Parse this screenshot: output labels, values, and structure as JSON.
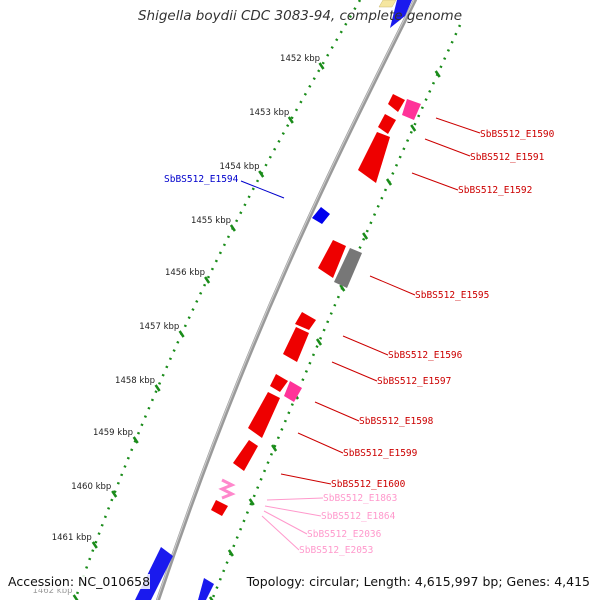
{
  "title": "Shigella boydii CDC 3083-94, complete genome",
  "footer": {
    "accession": "Accession: NC_010658",
    "topology": "Topology: circular; Length: 4,615,997 bp; Genes: 4,415"
  },
  "colors": {
    "backbone": "#888888",
    "ticks": "#1a8c1a",
    "gene_red": "#ff0000",
    "gene_blue": "#0000ff",
    "gene_pink": "#ff3399",
    "gene_gray": "#777777",
    "gene_yellow": "#f5e6a0",
    "label_red": "#cc0000",
    "label_blue": "#0000cc",
    "label_pink": "#ff99cc"
  },
  "scale_labels": [
    "1452 kbp",
    "1453 kbp",
    "1454 kbp",
    "1455 kbp",
    "1456 kbp",
    "1457 kbp",
    "1458 kbp",
    "1459 kbp",
    "1460 kbp",
    "1461 kbp",
    "1462 kbp"
  ],
  "gene_labels": [
    {
      "text": "SbBS512_E1590",
      "color": "red"
    },
    {
      "text": "SbBS512_E1591",
      "color": "red"
    },
    {
      "text": "SbBS512_E1592",
      "color": "red"
    },
    {
      "text": "SbBS512_E1594",
      "color": "blue"
    },
    {
      "text": "SbBS512_E1595",
      "color": "red"
    },
    {
      "text": "SbBS512_E1596",
      "color": "red"
    },
    {
      "text": "SbBS512_E1597",
      "color": "red"
    },
    {
      "text": "SbBS512_E1598",
      "color": "red"
    },
    {
      "text": "SbBS512_E1599",
      "color": "red"
    },
    {
      "text": "SbBS512_E1600",
      "color": "red"
    },
    {
      "text": "SbBS512_E1863",
      "color": "pink"
    },
    {
      "text": "SbBS512_E1864",
      "color": "pink"
    },
    {
      "text": "SbBS512_E2036",
      "color": "pink"
    },
    {
      "text": "SbBS512_E2053",
      "color": "pink"
    }
  ]
}
